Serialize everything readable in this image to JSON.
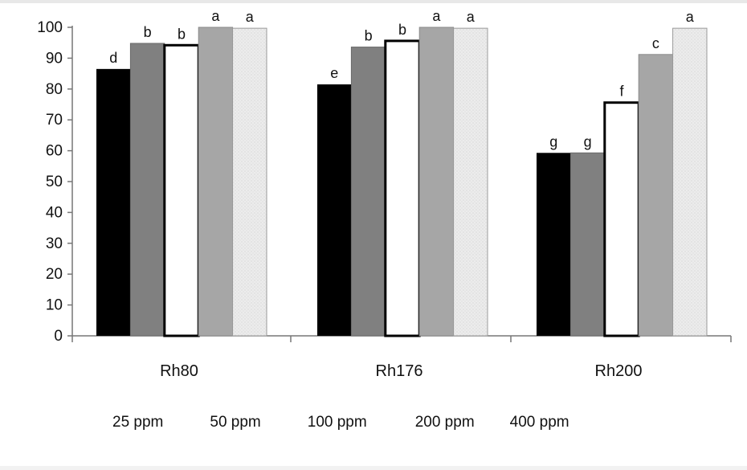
{
  "chart_data": {
    "type": "bar",
    "title": "",
    "xlabel": "",
    "ylabel": "",
    "categories": [
      "Rh80",
      "Rh176",
      "Rh200"
    ],
    "ylim": [
      0,
      100
    ],
    "yticks": [
      0,
      10,
      20,
      30,
      40,
      50,
      60,
      70,
      80,
      90,
      100
    ],
    "grid": false,
    "legend_placement": "bottom",
    "series": [
      {
        "name": "25 ppm",
        "values": [
          86.5,
          81.5,
          59.3
        ],
        "letters": [
          "d",
          "e",
          "g"
        ],
        "color": "#000000"
      },
      {
        "name": "50 ppm",
        "values": [
          94.8,
          93.6,
          59.3
        ],
        "letters": [
          "b",
          "b",
          "g"
        ],
        "color": "#808080"
      },
      {
        "name": "100 ppm",
        "values": [
          94.2,
          95.6,
          75.6
        ],
        "letters": [
          "b",
          "b",
          "f"
        ],
        "color": "#ffffff"
      },
      {
        "name": "200 ppm",
        "values": [
          100,
          100,
          91.2
        ],
        "letters": [
          "a",
          "a",
          "c"
        ],
        "color": "#a6a6a6"
      },
      {
        "name": "400 ppm",
        "values": [
          99.7,
          99.7,
          99.7
        ],
        "letters": [
          "a",
          "a",
          "a"
        ],
        "color": "#e6e6e6"
      }
    ]
  }
}
